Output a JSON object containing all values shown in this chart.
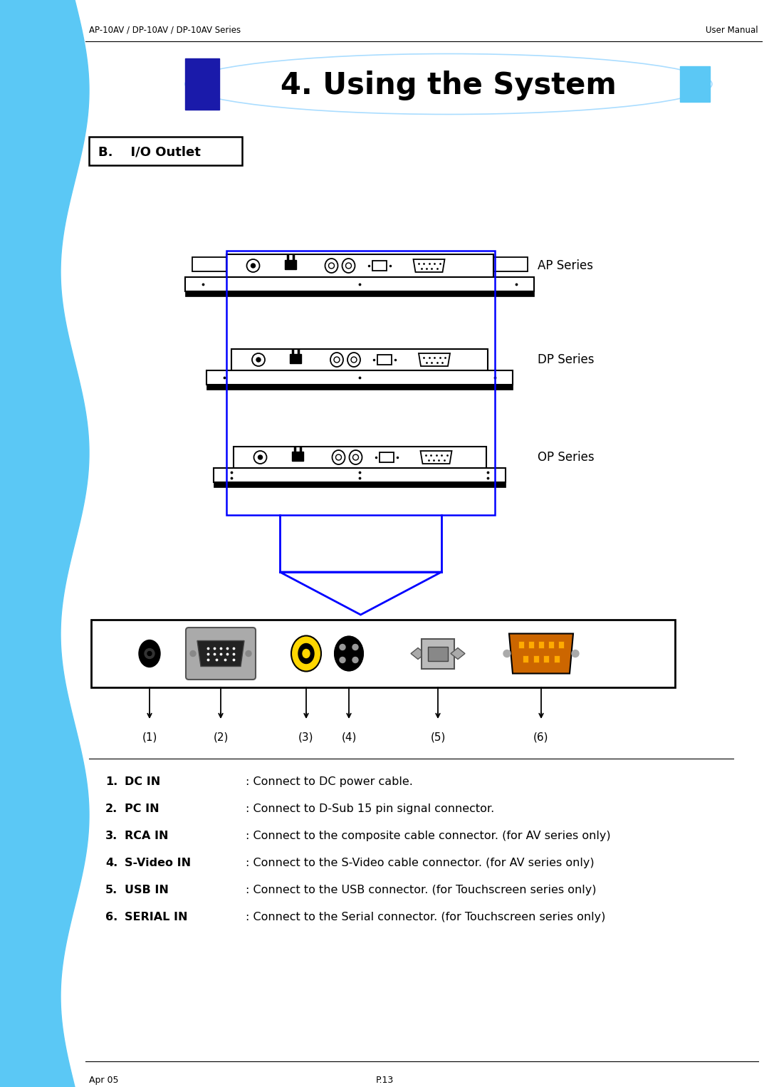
{
  "bg_color": "#ffffff",
  "sidebar_color": "#5BC8F5",
  "dark_blue": "#1a1aaa",
  "light_blue": "#5BC8F5",
  "header_left": "AP-10AV / DP-10AV / DP-10AV Series",
  "header_right": "User Manual",
  "title": "4. Using the System",
  "section": "B.    I/O Outlet",
  "series_labels": [
    "AP Series",
    "DP Series",
    "OP Series"
  ],
  "connector_labels": [
    "(1)",
    "(2)",
    "(3)",
    "(4)",
    "(5)",
    "(6)"
  ],
  "list_items": [
    [
      "DC IN",
      ": Connect to DC power cable."
    ],
    [
      "PC IN",
      ": Connect to D-Sub 15 pin signal connector."
    ],
    [
      "RCA IN",
      ": Connect to the composite cable connector. (for AV series only)"
    ],
    [
      "S-Video IN",
      ": Connect to the S-Video cable connector. (for AV series only)"
    ],
    [
      "USB IN",
      ": Connect to the USB connector. (for Touchscreen series only)"
    ],
    [
      "SERIAL IN",
      ": Connect to the Serial connector. (for Touchscreen series only)"
    ]
  ],
  "footer_left": "Apr 05",
  "footer_center": "P.13",
  "figw": 10.8,
  "figh": 15.26,
  "dpi": 100
}
